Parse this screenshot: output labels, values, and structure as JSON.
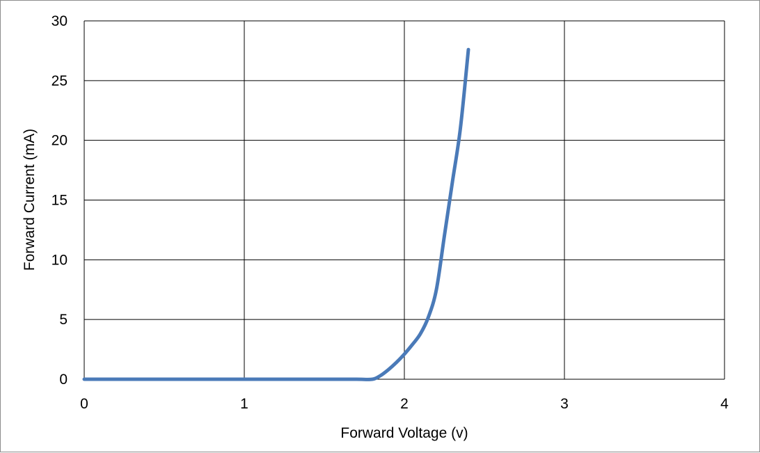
{
  "chart_data": {
    "type": "line",
    "title": "",
    "xlabel": "Forward Voltage (v)",
    "ylabel": "Forward Current (mA)",
    "xlim": [
      0,
      4
    ],
    "ylim": [
      0,
      30
    ],
    "x_ticks": [
      "0",
      "1",
      "2",
      "3",
      "4"
    ],
    "y_ticks": [
      "0",
      "5",
      "10",
      "15",
      "20",
      "25",
      "30"
    ],
    "grid": true,
    "legend": "none",
    "series": [
      {
        "color": "#4a7ab8",
        "points": [
          [
            0.0,
            0.0
          ],
          [
            0.5,
            0.0
          ],
          [
            1.0,
            0.0
          ],
          [
            1.5,
            0.0
          ],
          [
            1.7,
            0.0
          ],
          [
            1.8,
            0.0
          ],
          [
            1.85,
            0.3
          ],
          [
            1.9,
            0.8
          ],
          [
            1.95,
            1.4
          ],
          [
            2.0,
            2.1
          ],
          [
            2.05,
            2.9
          ],
          [
            2.1,
            3.8
          ],
          [
            2.15,
            5.2
          ],
          [
            2.2,
            7.5
          ],
          [
            2.25,
            12.0
          ],
          [
            2.3,
            16.5
          ],
          [
            2.35,
            21.0
          ],
          [
            2.4,
            27.6
          ]
        ]
      }
    ]
  }
}
